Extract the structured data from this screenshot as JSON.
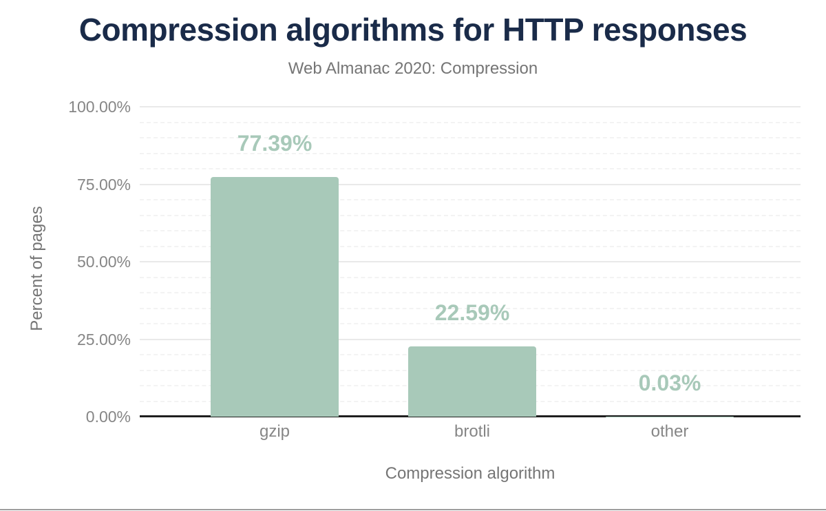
{
  "page": {
    "background": "#ffffff",
    "bottom_rule_color": "#9d9d9d"
  },
  "chart_data": {
    "type": "bar",
    "title": "Compression algorithms for HTTP responses",
    "subtitle": "Web Almanac 2020: Compression",
    "xlabel": "Compression algorithm",
    "ylabel": "Percent of pages",
    "categories": [
      "gzip",
      "brotli",
      "other"
    ],
    "values": [
      77.39,
      22.59,
      0.03
    ],
    "data_labels": [
      "77.39%",
      "22.59%",
      "0.03%"
    ],
    "ylim": [
      0,
      100
    ],
    "yticks": [
      {
        "value": 100,
        "label": "100.00%"
      },
      {
        "value": 75,
        "label": "75.00%"
      },
      {
        "value": 50,
        "label": "50.00%"
      },
      {
        "value": 25,
        "label": "25.00%"
      },
      {
        "value": 0,
        "label": "0.00%"
      }
    ],
    "y_minor_step": 5,
    "grid": "horizontal, major solid + minor dashed",
    "legend": "none",
    "colors": {
      "bar": "#a8c9b9",
      "data_label": "#a8c9b9",
      "title": "#1a2b49",
      "subtitle": "#757575",
      "axis_title": "#757575",
      "tick_label": "#868686",
      "axis_line": "#1f1f1f"
    }
  }
}
